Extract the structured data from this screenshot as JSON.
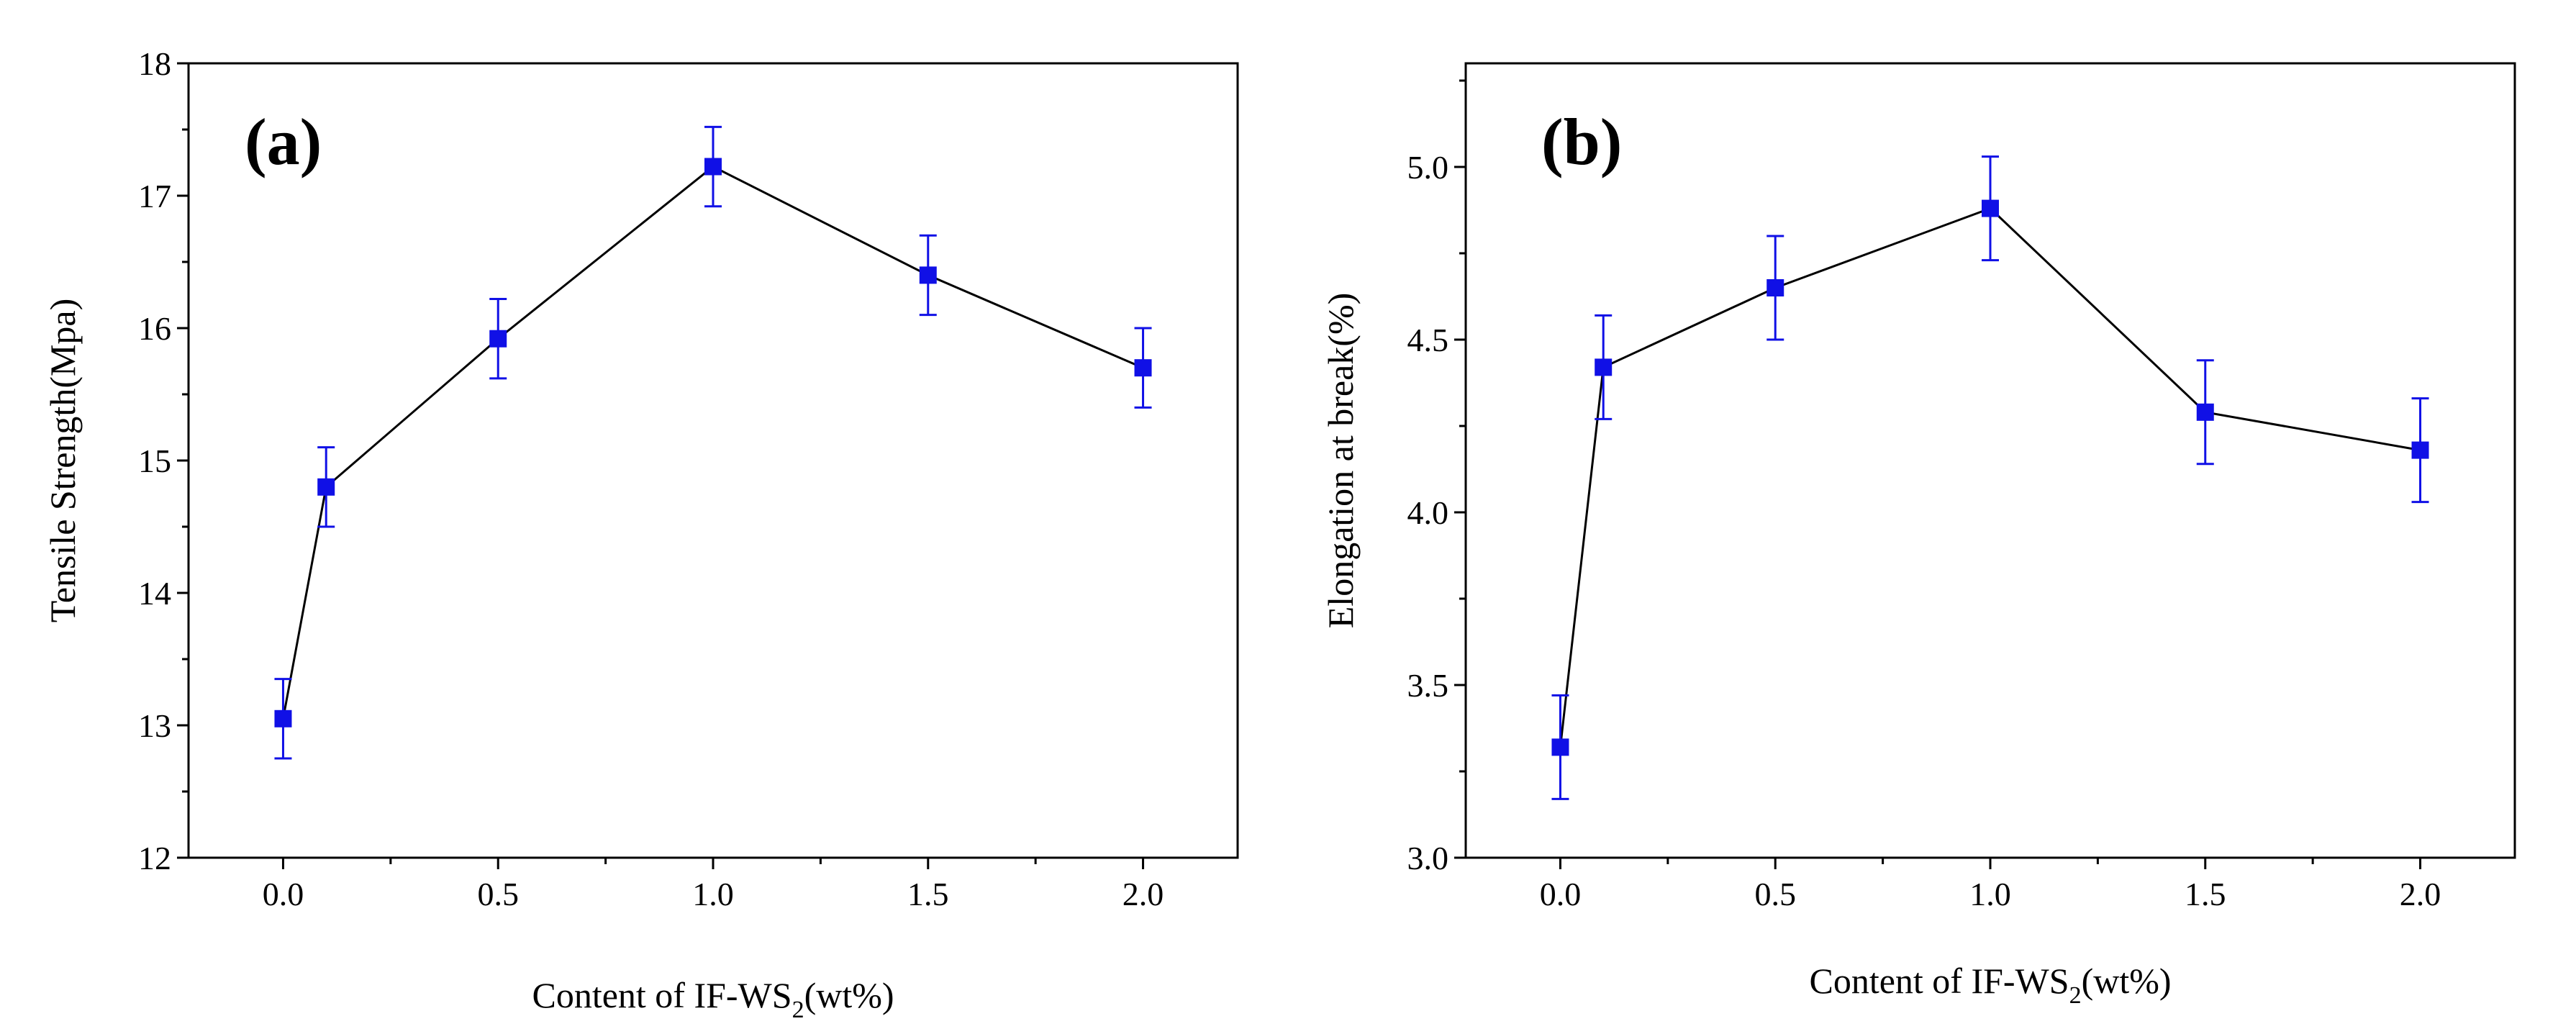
{
  "colors": {
    "marker": "#1010e6",
    "errorbar": "#1010e6",
    "line": "#000000",
    "axes": "#000000",
    "background": "#ffffff"
  },
  "chart_data": [
    {
      "type": "line",
      "panel_label": "(a)",
      "xlabel_main": "Content of IF-WS",
      "xlabel_sub": "2",
      "xlabel_end": "(wt%)",
      "ylabel": "Tensile Strength(Mpa)",
      "xlim": [
        -0.22,
        2.22
      ],
      "ylim": [
        12,
        18
      ],
      "xticks": [
        0.0,
        0.5,
        1.0,
        1.5,
        2.0
      ],
      "xtick_labels": [
        "0.0",
        "0.5",
        "1.0",
        "1.5",
        "2.0"
      ],
      "yticks": [
        12,
        13,
        14,
        15,
        16,
        17,
        18
      ],
      "ytick_labels": [
        "12",
        "13",
        "14",
        "15",
        "16",
        "17",
        "18"
      ],
      "series": [
        {
          "name": "Tensile Strength",
          "x": [
            0.0,
            0.1,
            0.5,
            1.0,
            1.5,
            2.0
          ],
          "y": [
            13.05,
            14.8,
            15.92,
            17.22,
            16.4,
            15.7
          ],
          "error": [
            0.3,
            0.3,
            0.3,
            0.3,
            0.3,
            0.3
          ]
        }
      ]
    },
    {
      "type": "line",
      "panel_label": "(b)",
      "xlabel_main": "Content of IF-WS",
      "xlabel_sub": "2",
      "xlabel_end": "(wt%)",
      "ylabel": "Elongation at break(%)",
      "xlim": [
        -0.22,
        2.22
      ],
      "ylim": [
        3.0,
        5.3
      ],
      "xticks": [
        0.0,
        0.5,
        1.0,
        1.5,
        2.0
      ],
      "xtick_labels": [
        "0.0",
        "0.5",
        "1.0",
        "1.5",
        "2.0"
      ],
      "yticks": [
        3.0,
        3.5,
        4.0,
        4.5,
        5.0
      ],
      "ytick_labels": [
        "3.0",
        "3.5",
        "4.0",
        "4.5",
        "5.0"
      ],
      "series": [
        {
          "name": "Elongation at break",
          "x": [
            0.0,
            0.1,
            0.5,
            1.0,
            1.5,
            2.0
          ],
          "y": [
            3.32,
            4.42,
            4.65,
            4.88,
            4.29,
            4.18
          ],
          "error": [
            0.15,
            0.15,
            0.15,
            0.15,
            0.15,
            0.15
          ]
        }
      ]
    }
  ]
}
